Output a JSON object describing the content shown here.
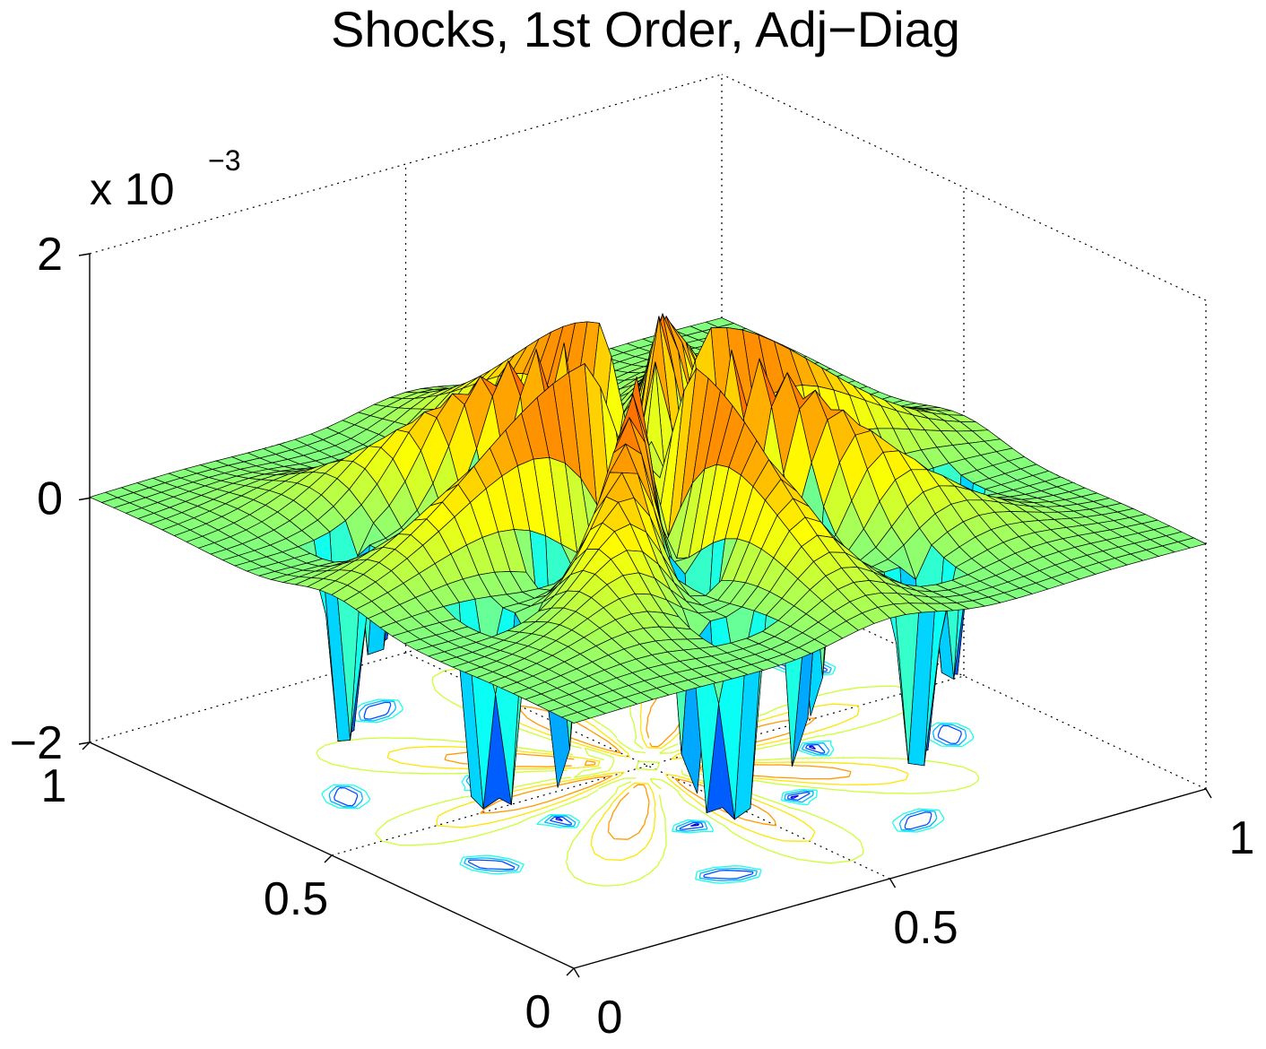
{
  "chart_data": {
    "type": "surface3d",
    "title": "Shocks, 1st Order, Adj−Diag",
    "z_multiplier": "x 10",
    "z_multiplier_exponent": "−3",
    "x": {
      "range": [
        0,
        1
      ],
      "tick_values": [
        0,
        0.5,
        1
      ],
      "tick_labels": [
        "0",
        "0.5",
        "1"
      ]
    },
    "y": {
      "range": [
        0,
        1
      ],
      "tick_values": [
        0,
        0.5,
        1
      ],
      "tick_labels": [
        "0",
        "0.5",
        "1"
      ]
    },
    "z": {
      "range": [
        -2,
        2
      ],
      "tick_values": [
        -2,
        0,
        2
      ],
      "tick_labels": [
        "−2",
        "0",
        "2"
      ],
      "scale": 0.001
    },
    "grid": "on (dotted)",
    "colormap": "jet",
    "contour_projection": "on floor",
    "surface": {
      "grid_size": 41,
      "baseline": 0,
      "description_of_shape": "eight radial ridges from center with sharp negative spikes between them",
      "ridge_peak": 1.45,
      "spike_min": -2.0,
      "num_ridges": 8
    },
    "colors": {
      "dark_blue": "#00008f",
      "blue": "#0000ff",
      "cyan": "#00ffff",
      "yellow": "#ffff00",
      "orange": "#ff8000",
      "red": "#ff0000",
      "dark_red": "#800000"
    }
  }
}
